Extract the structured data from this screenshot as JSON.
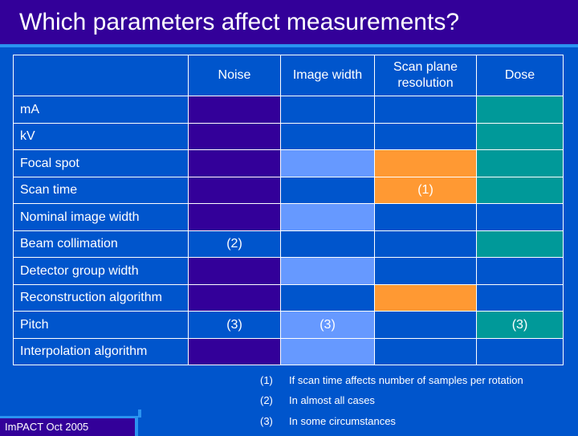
{
  "title": "Which parameters affect measurements?",
  "columns": [
    "",
    "Noise",
    "Image width",
    "Scan plane resolution",
    "Dose"
  ],
  "colors": {
    "purple": "#330099",
    "blue": "#0055cc",
    "lightblue": "#6699ff",
    "orange": "#ff9933",
    "teal": "#009999"
  },
  "rows": [
    {
      "label": "mA",
      "cells": [
        {
          "color": "purple",
          "text": ""
        },
        {
          "color": "blue",
          "text": ""
        },
        {
          "color": "blue",
          "text": ""
        },
        {
          "color": "teal",
          "text": ""
        }
      ]
    },
    {
      "label": "kV",
      "cells": [
        {
          "color": "purple",
          "text": ""
        },
        {
          "color": "blue",
          "text": ""
        },
        {
          "color": "blue",
          "text": ""
        },
        {
          "color": "teal",
          "text": ""
        }
      ]
    },
    {
      "label": "Focal spot",
      "cells": [
        {
          "color": "purple",
          "text": ""
        },
        {
          "color": "lightblue",
          "text": ""
        },
        {
          "color": "orange",
          "text": ""
        },
        {
          "color": "teal",
          "text": ""
        }
      ]
    },
    {
      "label": "Scan time",
      "cells": [
        {
          "color": "purple",
          "text": ""
        },
        {
          "color": "blue",
          "text": ""
        },
        {
          "color": "orange",
          "text": "(1)"
        },
        {
          "color": "teal",
          "text": ""
        }
      ]
    },
    {
      "label": "Nominal image width",
      "cells": [
        {
          "color": "purple",
          "text": ""
        },
        {
          "color": "lightblue",
          "text": ""
        },
        {
          "color": "blue",
          "text": ""
        },
        {
          "color": "blue",
          "text": ""
        }
      ]
    },
    {
      "label": "Beam collimation",
      "cells": [
        {
          "color": "blue",
          "text": "(2)"
        },
        {
          "color": "blue",
          "text": ""
        },
        {
          "color": "blue",
          "text": ""
        },
        {
          "color": "teal",
          "text": ""
        }
      ]
    },
    {
      "label": "Detector group width",
      "cells": [
        {
          "color": "purple",
          "text": ""
        },
        {
          "color": "lightblue",
          "text": ""
        },
        {
          "color": "blue",
          "text": ""
        },
        {
          "color": "blue",
          "text": ""
        }
      ]
    },
    {
      "label": "Reconstruction algorithm",
      "cells": [
        {
          "color": "purple",
          "text": ""
        },
        {
          "color": "blue",
          "text": ""
        },
        {
          "color": "orange",
          "text": ""
        },
        {
          "color": "blue",
          "text": ""
        }
      ]
    },
    {
      "label": "Pitch",
      "cells": [
        {
          "color": "blue",
          "text": "(3)"
        },
        {
          "color": "lightblue",
          "text": "(3)"
        },
        {
          "color": "blue",
          "text": ""
        },
        {
          "color": "teal",
          "text": "(3)"
        }
      ]
    },
    {
      "label": "Interpolation algorithm",
      "cells": [
        {
          "color": "purple",
          "text": ""
        },
        {
          "color": "lightblue",
          "text": ""
        },
        {
          "color": "blue",
          "text": ""
        },
        {
          "color": "blue",
          "text": ""
        }
      ]
    }
  ],
  "notes": [
    {
      "num": "(1)",
      "text": "If scan time affects number of samples per rotation"
    },
    {
      "num": "(2)",
      "text": "In almost all cases"
    },
    {
      "num": "(3)",
      "text": "In some circumstances"
    }
  ],
  "footer": "ImPACT Oct 2005"
}
